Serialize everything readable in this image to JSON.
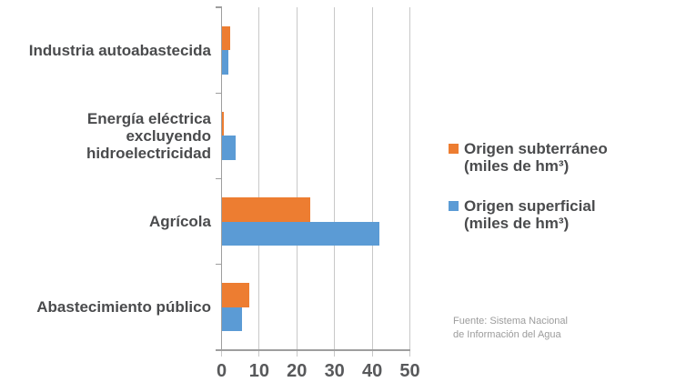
{
  "chart_data": {
    "type": "bar",
    "orientation": "horizontal",
    "categories": [
      "Industria autoabastecida",
      "Energía eléctrica\nexcluyendo\nhidroelectricidad",
      "Agrícola",
      "Abastecimiento público"
    ],
    "series": [
      {
        "name": "Origen subterráneo (miles de hm³)",
        "key": "subterraneo",
        "color": "#ED7D31",
        "values": [
          2.4,
          0.6,
          23.5,
          7.4
        ]
      },
      {
        "name": "Origen superficial (miles de hm³)",
        "key": "superficial",
        "color": "#5B9BD5",
        "values": [
          1.8,
          3.8,
          42.0,
          5.5
        ]
      }
    ],
    "x_axis": {
      "min": 0,
      "max": 50,
      "ticks": [
        0,
        10,
        20,
        30,
        40,
        50
      ]
    },
    "grid": "vertical",
    "legend_position": "right",
    "legend": [
      {
        "line1": "Origen subterráneo",
        "line2": "(miles de hm³)"
      },
      {
        "line1": "Origen superficial",
        "line2": "(miles de hm³)"
      }
    ],
    "source": {
      "line1": "Fuente: Sistema Nacional",
      "line2": "de Información del Agua"
    }
  },
  "colors": {
    "subterraneo": "#ED7D31",
    "superficial": "#5B9BD5",
    "category_text": "#4A4B4D",
    "tick_text": "#58595B",
    "gridline": "#C8C8C8",
    "axis": "#9E9E9E",
    "source_text": "#9C9C9C",
    "background": "#FFFFFF"
  }
}
